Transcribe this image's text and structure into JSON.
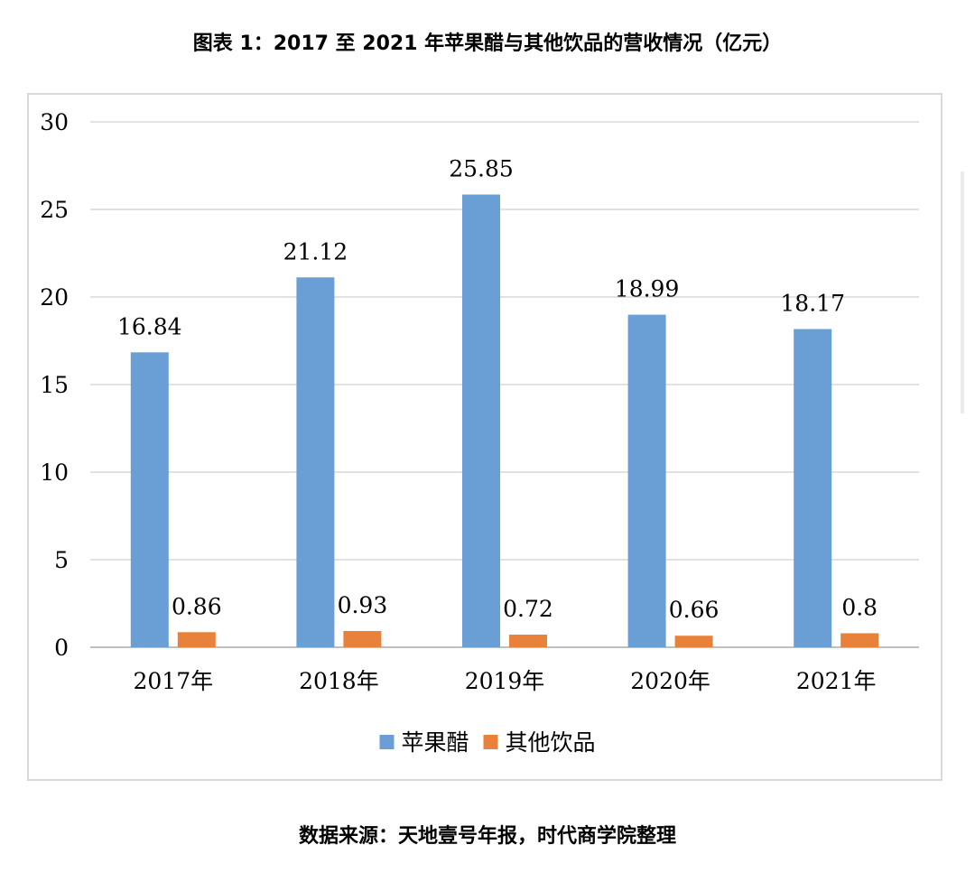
{
  "title": "图表 1：2017 至 2021 年苹果醋与其他饮品的营收情况（亿元）",
  "source": "数据来源：天地壹号年报，时代商学院整理",
  "chart_data": {
    "type": "bar",
    "categories": [
      "2017年",
      "2018年",
      "2019年",
      "2020年",
      "2021年"
    ],
    "series": [
      {
        "name": "苹果醋",
        "values": [
          16.84,
          21.12,
          25.85,
          18.99,
          18.17
        ],
        "labels": [
          "16.84",
          "21.12",
          "25.85",
          "18.99",
          "18.17"
        ],
        "color": "#6a9fd6"
      },
      {
        "name": "其他饮品",
        "values": [
          0.86,
          0.93,
          0.72,
          0.66,
          0.8
        ],
        "labels": [
          "0.86",
          "0.93",
          "0.72",
          "0.66",
          "0.8"
        ],
        "color": "#e8823a"
      }
    ],
    "ylim": [
      0,
      30
    ],
    "yticks": [
      0,
      5,
      10,
      15,
      20,
      25,
      30
    ],
    "grid": true,
    "legend_position": "bottom",
    "colors": {
      "gridline": "#d9d9d9",
      "frame": "#d9d9d9"
    }
  }
}
